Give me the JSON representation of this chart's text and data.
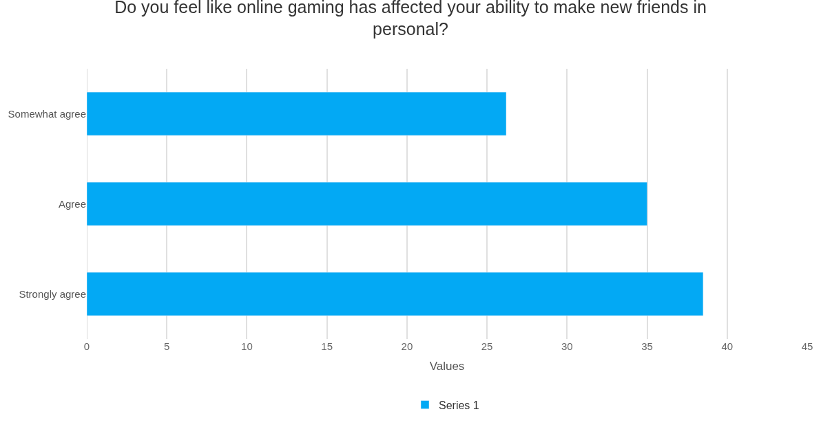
{
  "chart_data": {
    "type": "bar",
    "orientation": "horizontal",
    "title": "Do you feel like online gaming has affected your ability to make new friends in personal?",
    "xlabel": "Values",
    "categories": [
      "Somewhat agree",
      "Agree",
      "Strongly agree"
    ],
    "series": [
      {
        "name": "Series 1",
        "color": "#03a9f4",
        "values": [
          26.2,
          35.0,
          38.5
        ]
      }
    ],
    "xlim": [
      0,
      45
    ],
    "xticks": [
      0,
      5,
      10,
      15,
      20,
      25,
      30,
      35,
      40,
      45
    ],
    "grid": "x",
    "legend": "bottom"
  }
}
